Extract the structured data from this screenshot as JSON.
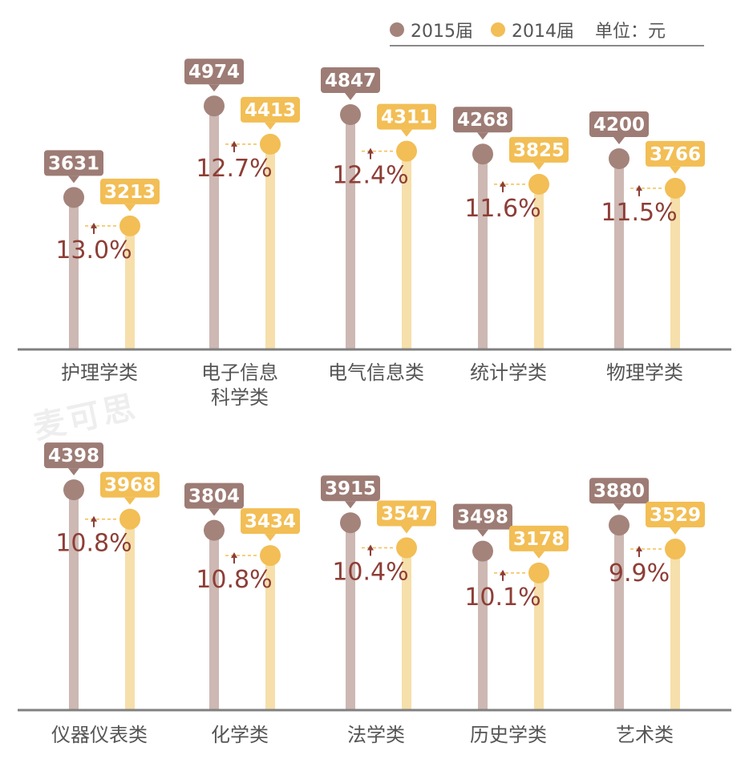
{
  "legend": {
    "items": [
      {
        "label": "2015届",
        "color": "#a4837b"
      },
      {
        "label": "2014届",
        "color": "#f2be55"
      }
    ],
    "unit": "单位：元"
  },
  "watermark": "麦可思",
  "colors": {
    "stem_2015": "#cdb8b3",
    "stem_2014": "#f6dfaa",
    "dot_2015": "#a4837b",
    "dot_2014": "#f2be55",
    "label_2015": "#9d7c75",
    "label_2014": "#f2be55",
    "pct_text": "#8d3e36",
    "axis": "#808080"
  },
  "chart_data": [
    {
      "type": "bar",
      "panel": "top",
      "categories": [
        "护理学类",
        "电子信息\n科学类",
        "电气信息类",
        "统计学类",
        "物理学类"
      ],
      "series": [
        {
          "name": "2015届",
          "values": [
            3631,
            4974,
            4847,
            4268,
            4200
          ]
        },
        {
          "name": "2014届",
          "values": [
            3213,
            4413,
            4311,
            3825,
            3766
          ]
        }
      ],
      "growth": [
        "13.0%",
        "12.7%",
        "12.4%",
        "11.6%",
        "11.5%"
      ],
      "unit": "元"
    },
    {
      "type": "bar",
      "panel": "bottom",
      "categories": [
        "仪器仪表类",
        "化学类",
        "法学类",
        "历史学类",
        "艺术类"
      ],
      "series": [
        {
          "name": "2015届",
          "values": [
            4398,
            3804,
            3915,
            3498,
            3880
          ]
        },
        {
          "name": "2014届",
          "values": [
            3968,
            3434,
            3547,
            3178,
            3529
          ]
        }
      ],
      "growth": [
        "10.8%",
        "10.8%",
        "10.4%",
        "10.1%",
        "9.9%"
      ],
      "unit": "元"
    }
  ]
}
